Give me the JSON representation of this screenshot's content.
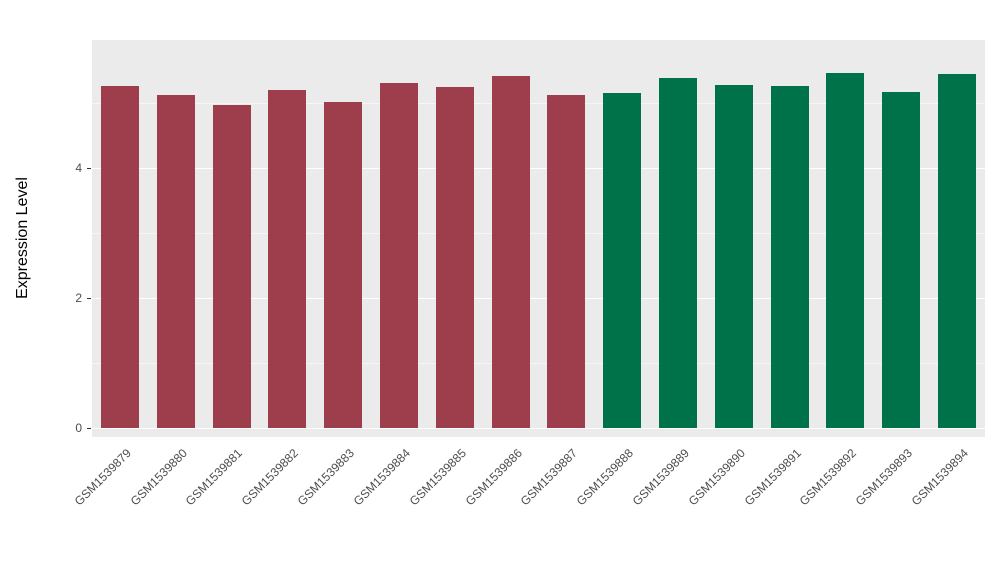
{
  "chart_data": {
    "type": "bar",
    "title": "",
    "xlabel": "",
    "ylabel": "Expression Level",
    "categories": [
      "GSM1539879",
      "GSM1539880",
      "GSM1539881",
      "GSM1539882",
      "GSM1539883",
      "GSM1539884",
      "GSM1539885",
      "GSM1539886",
      "GSM1539887",
      "GSM1539888",
      "GSM1539889",
      "GSM1539890",
      "GSM1539891",
      "GSM1539892",
      "GSM1539893",
      "GSM1539894"
    ],
    "values": [
      5.26,
      5.12,
      4.97,
      5.2,
      5.02,
      5.31,
      5.25,
      5.42,
      5.12,
      5.15,
      5.38,
      5.28,
      5.26,
      5.46,
      5.17,
      5.45
    ],
    "colors": [
      "#9e3d4c",
      "#9e3d4c",
      "#9e3d4c",
      "#9e3d4c",
      "#9e3d4c",
      "#9e3d4c",
      "#9e3d4c",
      "#9e3d4c",
      "#9e3d4c",
      "#007249",
      "#007249",
      "#007249",
      "#007249",
      "#007249",
      "#007249",
      "#007249"
    ],
    "groups": [
      {
        "color": "#9e3d4c",
        "from": "GSM1539879",
        "to": "GSM1539887",
        "count": 9
      },
      {
        "color": "#007249",
        "from": "GSM1539888",
        "to": "GSM1539894",
        "count": 7
      }
    ],
    "ylim": [
      0,
      6
    ],
    "yticks_major": [
      0,
      2,
      4
    ],
    "yticks_minor": [
      1,
      3,
      5
    ],
    "grid": true,
    "legend": "none",
    "panel_background": "#ebebeb",
    "gridline_color": "#ffffff",
    "outer_background": "#ffffff"
  }
}
